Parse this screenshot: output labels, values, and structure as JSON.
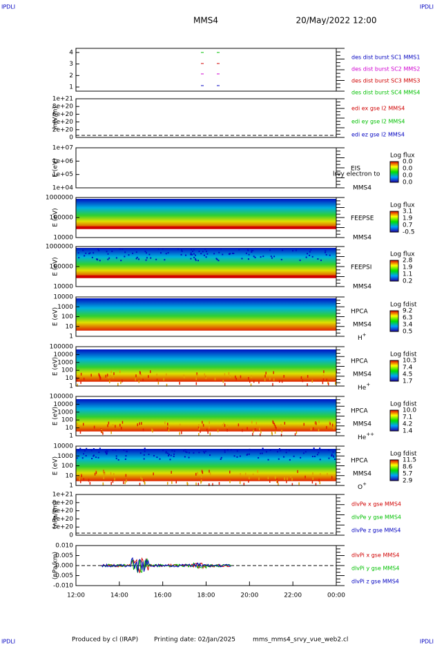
{
  "header": {
    "left_tag": "IPDLI",
    "right_tag": "IPDLI",
    "spacecraft": "MMS4",
    "date": "20/May/2022 12:00"
  },
  "panels": [
    {
      "ylabel": "",
      "yticks": [
        "4",
        "3",
        "2",
        "1"
      ],
      "legend": [
        {
          "text": "des dist burst SC1 MMS1",
          "color": "#0000c0"
        },
        {
          "text": "des dist burst SC2 MMS2",
          "color": "#d000d0"
        },
        {
          "text": "des dist burst SC3 MMS3",
          "color": "#d00000"
        },
        {
          "text": "des dist burst SC4 MMS4",
          "color": "#00c000"
        }
      ]
    },
    {
      "ylabel": "(mV/m)",
      "yticks": [
        "1e+21",
        "8e+20",
        "6e+20",
        "4e+20",
        "2e+20",
        "0"
      ],
      "legend": [
        {
          "text": "edi ex gse l2 MMS4",
          "color": "#d00000"
        },
        {
          "text": "edi ey gse l2 MMS4",
          "color": "#00c000"
        },
        {
          "text": "edi ez gse l2 MMS4",
          "color": "#0000c0"
        }
      ]
    },
    {
      "ylabel": "E (eV)",
      "yticks": [
        "1e+07",
        "1e+06",
        "1e+05",
        "1e+04"
      ],
      "instrument": "EIS",
      "sc": "MMS4",
      "overlay": "lrvy electron to",
      "cbar_title": "Log flux",
      "cbar": [
        "0.0",
        "0.0",
        "0.0",
        "0.0"
      ]
    },
    {
      "ylabel": "E (eV)",
      "yticks": [
        "1000000",
        "100000",
        "10000"
      ],
      "instrument": "FEEPSE",
      "sc": "MMS4",
      "cbar_title": "Log flux",
      "cbar": [
        "3.1",
        "1.9",
        "0.7",
        "-0.5"
      ]
    },
    {
      "ylabel": "E (eV)",
      "yticks": [
        "1000000",
        "100000",
        "10000"
      ],
      "instrument": "FEEPSI",
      "sc": "MMS4",
      "cbar_title": "Log flux",
      "cbar": [
        "2.8",
        "1.9",
        "1.1",
        "0.2"
      ]
    },
    {
      "ylabel": "E (eV)",
      "yticks": [
        "10000",
        "1000",
        "100",
        "10",
        "1"
      ],
      "instrument": "HPCA",
      "sc": "MMS4",
      "species": {
        "base": "H",
        "sup": "+"
      },
      "cbar_title": "Log fdist",
      "cbar": [
        "9.2",
        "6.3",
        "3.4",
        "0.5"
      ]
    },
    {
      "ylabel": "E (eV)",
      "yticks": [
        "100000",
        "10000",
        "1000",
        "100",
        "10",
        "1"
      ],
      "instrument": "HPCA",
      "sc": "MMS4",
      "species": {
        "base": "He",
        "sup": "+"
      },
      "cbar_title": "Log fdist",
      "cbar": [
        "10.3",
        "7.4",
        "4.5",
        "1.7"
      ]
    },
    {
      "ylabel": "E (eV)",
      "yticks": [
        "100000",
        "10000",
        "1000",
        "100",
        "10",
        "1"
      ],
      "instrument": "HPCA",
      "sc": "MMS4",
      "species": {
        "base": "He",
        "sup": "++"
      },
      "cbar_title": "Log fdist",
      "cbar": [
        "10.0",
        "7.1",
        "4.2",
        "1.4"
      ]
    },
    {
      "ylabel": "E (eV)",
      "yticks": [
        "10000",
        "1000",
        "100",
        "10",
        "1"
      ],
      "instrument": "HPCA",
      "sc": "MMS4",
      "species": {
        "base": "O",
        "sup": "+"
      },
      "cbar_title": "Log fdist",
      "cbar": [
        "11.5",
        "8.6",
        "5.7",
        "2.9"
      ]
    },
    {
      "ylabel": "(nPa/km)",
      "yticks": [
        "1e+21",
        "8e+20",
        "6e+20",
        "4e+20",
        "2e+20",
        "0"
      ],
      "legend": [
        {
          "text": "dlvPe x gse MMS4",
          "color": "#d00000"
        },
        {
          "text": "dlvPe y gse MMS4",
          "color": "#00c000"
        },
        {
          "text": "dlvPe z gse MMS4",
          "color": "#0000c0"
        }
      ]
    },
    {
      "ylabel": "(nPa/km)",
      "yticks": [
        "0.010",
        "0.005",
        "0.000",
        "-0.005",
        "-0.010"
      ],
      "legend": [
        {
          "text": "dlvPi x gse MMS4",
          "color": "#d00000"
        },
        {
          "text": "dlvPi y gse MMS4",
          "color": "#00c000"
        },
        {
          "text": "dlvPi z gse MMS4",
          "color": "#0000c0"
        }
      ]
    }
  ],
  "xticks": [
    "12:00",
    "14:00",
    "16:00",
    "18:00",
    "20:00",
    "22:00",
    "00:00"
  ],
  "footer": {
    "producer": "Produced by cl (IRAP)",
    "printed": "Printing date: 02/Jan/2025",
    "file": "mms_mms4_srvy_vue_web2.cl"
  }
}
